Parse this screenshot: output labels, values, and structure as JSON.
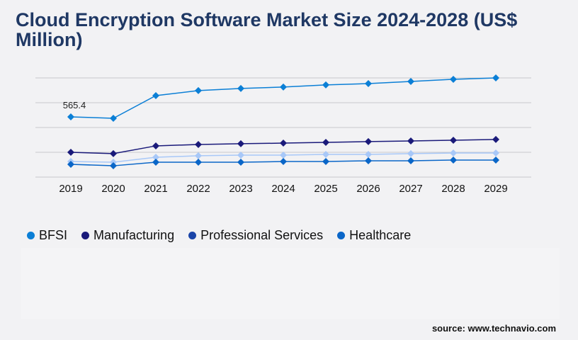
{
  "chart_data": {
    "type": "line",
    "title": "Cloud Encryption Software Market Size 2024-2028 (US$ Million)",
    "xlabel": "",
    "ylabel": "",
    "x": [
      "2019",
      "2020",
      "2021",
      "2022",
      "2023",
      "2024",
      "2025",
      "2026",
      "2027",
      "2028",
      "2029"
    ],
    "ylim": [
      0,
      931
    ],
    "grid": true,
    "legend_position": "bottom-left",
    "annotations": [
      {
        "series": "BFSI",
        "x": "2019",
        "text": "565.4"
      }
    ],
    "series": [
      {
        "name": "BFSI",
        "color": "#0b7fd6",
        "line_color": "#0b7fd6",
        "values": [
          565.4,
          552,
          765,
          812,
          832,
          845,
          865,
          878,
          898,
          918,
          931
        ]
      },
      {
        "name": "Manufacturing",
        "color": "#1a1a7a",
        "line_color": "#1a1a7a",
        "values": [
          233,
          220,
          293,
          306,
          313,
          319,
          326,
          333,
          339,
          346,
          353
        ]
      },
      {
        "name": "Professional Services",
        "color": "#1a44a8",
        "line_color": "#a8c8f8",
        "values": [
          146,
          140,
          186,
          200,
          206,
          206,
          213,
          213,
          220,
          226,
          226
        ]
      },
      {
        "name": "Healthcare",
        "color": "#0a66c8",
        "line_color": "#0a66c8",
        "values": [
          120,
          106,
          140,
          140,
          140,
          146,
          146,
          153,
          153,
          160,
          160
        ]
      }
    ]
  },
  "source": "source: www.technavio.com"
}
